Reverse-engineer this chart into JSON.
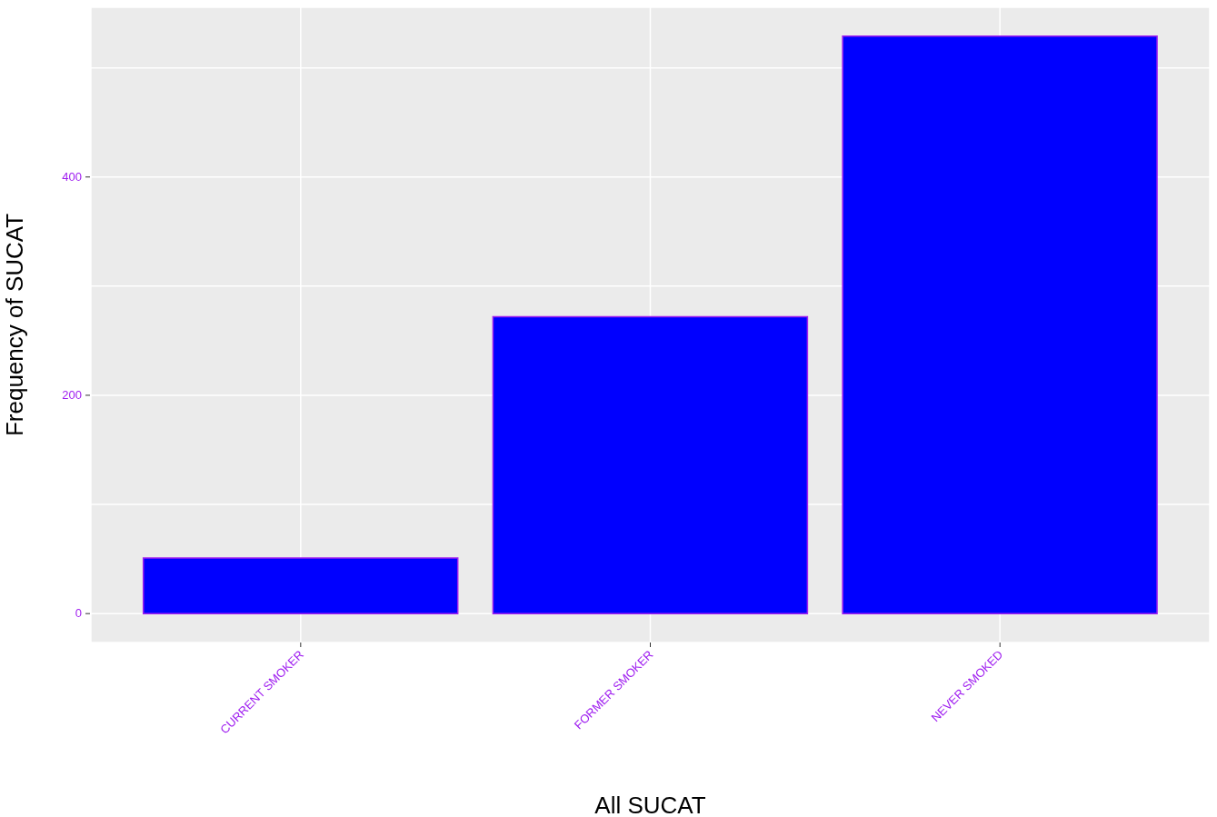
{
  "chart_data": {
    "type": "bar",
    "xlabel": "All SUCAT",
    "ylabel": "Frequency of SUCAT",
    "categories": [
      "CURRENT SMOKER",
      "FORMER SMOKER",
      "NEVER SMOKED"
    ],
    "values": [
      51,
      272,
      529
    ],
    "color": "#0000ff",
    "ylim": [
      -26.5,
      555.5
    ],
    "yticks": [
      0,
      {
        "value": 100,
        "label": null
      },
      200,
      {
        "value": 300,
        "label": null
      },
      400,
      {
        "value": 500,
        "label": null
      }
    ],
    "grid": true
  }
}
